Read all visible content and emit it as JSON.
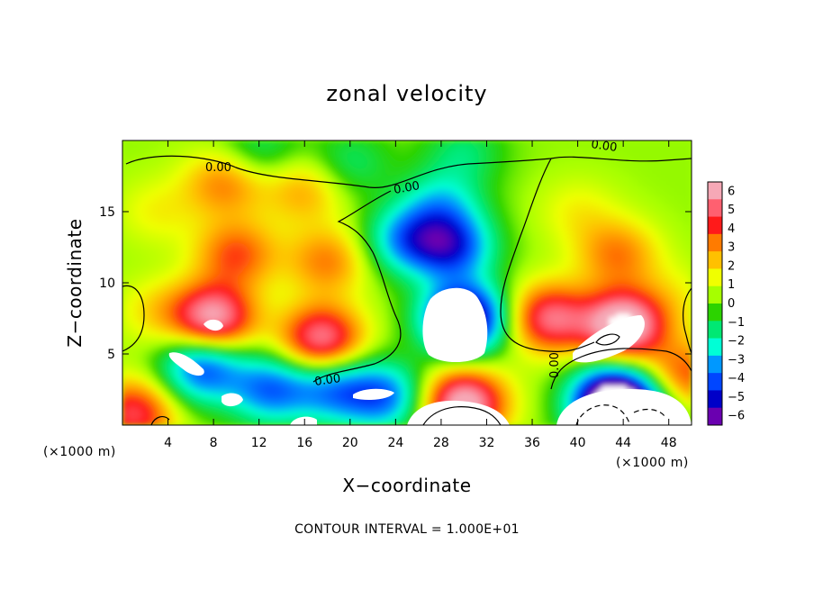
{
  "chart_data": {
    "type": "heatmap",
    "title": "zonal velocity",
    "xlabel": "X−coordinate",
    "ylabel": "Z−coordinate",
    "x_unit": "(×1000 m)",
    "y_unit": "(×1000 m)",
    "xlim": [
      0,
      50
    ],
    "ylim": [
      0,
      20
    ],
    "x_ticks": [
      4,
      8,
      12,
      16,
      20,
      24,
      28,
      32,
      36,
      40,
      44,
      48
    ],
    "y_ticks": [
      5,
      10,
      15
    ],
    "x_tick_labels": [
      "4",
      "8",
      "12",
      "16",
      "20",
      "24",
      "28",
      "32",
      "36",
      "40",
      "44",
      "48"
    ],
    "y_tick_labels": [
      "5",
      "10",
      "15"
    ],
    "colorbar": {
      "min": -6,
      "max": 6,
      "ticks": [
        "6",
        "5",
        "4",
        "3",
        "2",
        "1",
        "0",
        "−1",
        "−2",
        "−3",
        "−4",
        "−5",
        "−6"
      ],
      "colors": [
        "#f6a8b6",
        "#ff6070",
        "#ff1a1a",
        "#ff7b00",
        "#ffc000",
        "#f0ff00",
        "#a6ff00",
        "#2cd300",
        "#00e873",
        "#00ffd6",
        "#0098ff",
        "#0046ff",
        "#0000c8",
        "#6a00b0"
      ]
    },
    "contour_label": "0.00",
    "contour_label_count": 5,
    "footer": "CONTOUR INTERVAL = 1.000E+01",
    "features": [
      {
        "x": 8.0,
        "z": 7.5,
        "u": 5.5
      },
      {
        "x": 17.5,
        "z": 6.0,
        "u": 5.0
      },
      {
        "x": 10.0,
        "z": 12.0,
        "u": 3.0
      },
      {
        "x": 18.0,
        "z": 11.5,
        "u": 2.5
      },
      {
        "x": 9.0,
        "z": 17.0,
        "u": 2.5
      },
      {
        "x": 16.0,
        "z": 16.5,
        "u": 2.0
      },
      {
        "x": 7.0,
        "z": 4.0,
        "u": -4.5
      },
      {
        "x": 13.0,
        "z": 2.5,
        "u": -4.0
      },
      {
        "x": 18.5,
        "z": 2.5,
        "u": -3.5
      },
      {
        "x": 3.0,
        "z": 15.0,
        "u": 1.0
      },
      {
        "x": 30.0,
        "z": 7.5,
        "u": -7.5
      },
      {
        "x": 29.0,
        "z": 12.5,
        "u": -4.5
      },
      {
        "x": 28.0,
        "z": 15.5,
        "u": -2.5
      },
      {
        "x": 25.0,
        "z": 13.0,
        "u": -3.5
      },
      {
        "x": 30.0,
        "z": 1.5,
        "u": 6.0
      },
      {
        "x": 23.0,
        "z": 2.0,
        "u": -4.0
      },
      {
        "x": 37.5,
        "z": 7.5,
        "u": 4.5
      },
      {
        "x": 44.0,
        "z": 7.0,
        "u": 6.5
      },
      {
        "x": 43.5,
        "z": 12.0,
        "u": 2.5
      },
      {
        "x": 43.0,
        "z": 2.0,
        "u": -5.5
      },
      {
        "x": 44.0,
        "z": 0.6,
        "u": -7.5
      },
      {
        "x": 30.0,
        "z": 19.2,
        "u": -1.5
      },
      {
        "x": 12.0,
        "z": 19.3,
        "u": -1.5
      },
      {
        "x": 20.0,
        "z": 18.4,
        "u": -1.5
      },
      {
        "x": 49.5,
        "z": 3.5,
        "u": 3.0
      },
      {
        "x": 1.0,
        "z": 0.8,
        "u": 4.0
      },
      {
        "x": 3.0,
        "z": 8.0,
        "u": 1.2
      },
      {
        "x": 48.5,
        "z": 9.0,
        "u": 0.8
      },
      {
        "x": 40.0,
        "z": 15.0,
        "u": 1.0
      }
    ]
  }
}
